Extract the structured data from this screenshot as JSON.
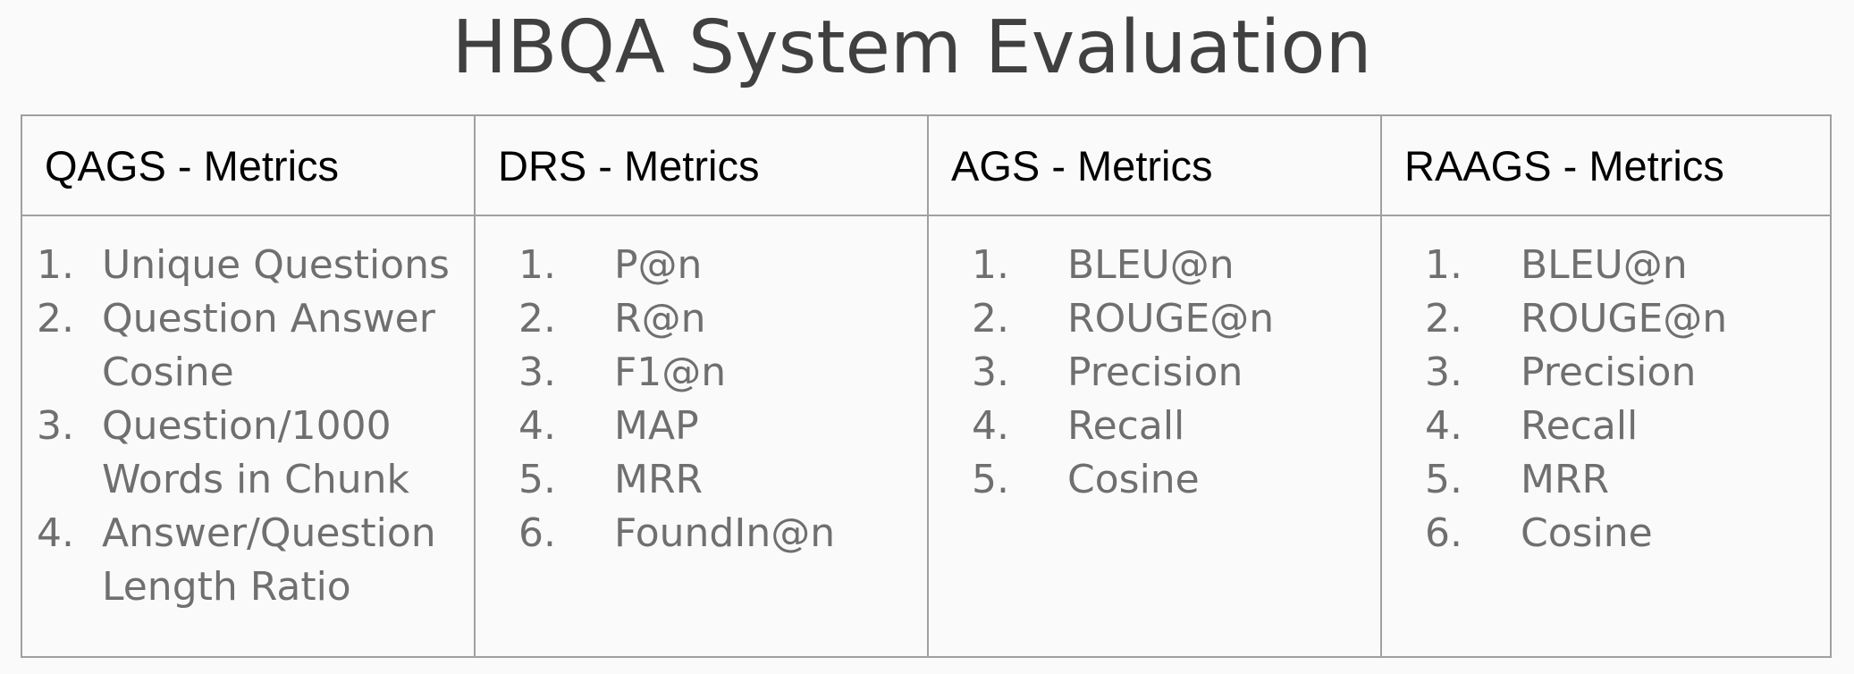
{
  "slide": {
    "title": "HBQA System Evaluation"
  },
  "columns": [
    {
      "header": "QAGS - Metrics",
      "items": [
        {
          "num": "1.",
          "text": "Unique Questions"
        },
        {
          "num": "2.",
          "text": "Question Answer Cosine"
        },
        {
          "num": "3.",
          "text": "Question/1000 Words in Chunk"
        },
        {
          "num": "4.",
          "text": "Answer/Question Length Ratio"
        }
      ]
    },
    {
      "header": "DRS - Metrics",
      "items": [
        {
          "num": "1.",
          "text": "P@n"
        },
        {
          "num": "2.",
          "text": "R@n"
        },
        {
          "num": "3.",
          "text": "F1@n"
        },
        {
          "num": "4.",
          "text": "MAP"
        },
        {
          "num": "5.",
          "text": "MRR"
        },
        {
          "num": "6.",
          "text": "FoundIn@n"
        }
      ]
    },
    {
      "header": "AGS - Metrics",
      "items": [
        {
          "num": "1.",
          "text": "BLEU@n"
        },
        {
          "num": "2.",
          "text": "ROUGE@n"
        },
        {
          "num": "3.",
          "text": "Precision"
        },
        {
          "num": "4.",
          "text": "Recall"
        },
        {
          "num": "5.",
          "text": "Cosine"
        }
      ]
    },
    {
      "header": "RAAGS - Metrics",
      "items": [
        {
          "num": "1.",
          "text": "BLEU@n"
        },
        {
          "num": "2.",
          "text": "ROUGE@n"
        },
        {
          "num": "3.",
          "text": "Precision"
        },
        {
          "num": "4.",
          "text": "Recall"
        },
        {
          "num": "5.",
          "text": "MRR"
        },
        {
          "num": "6.",
          "text": "Cosine"
        }
      ]
    }
  ]
}
